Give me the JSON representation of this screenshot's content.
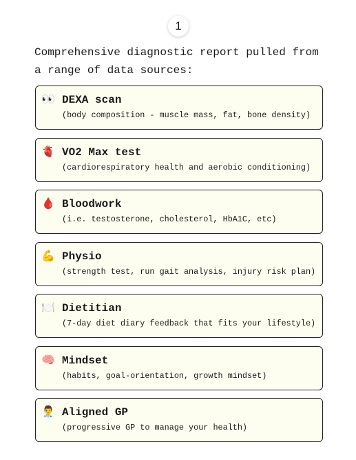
{
  "step": "1",
  "intro": "Comprehensive diagnostic report pulled from a range of data sources:",
  "items": [
    {
      "icon": "👀",
      "title": "DEXA scan",
      "description": "(body composition - muscle mass, fat, bone density)"
    },
    {
      "icon": "🫀",
      "title": "VO2 Max test",
      "description": "(cardiorespiratory health and aerobic conditioning)"
    },
    {
      "icon": "🩸",
      "title": "Bloodwork",
      "description": "(i.e. testosterone, cholesterol, HbA1C, etc)"
    },
    {
      "icon": "💪",
      "title": "Physio",
      "description": "(strength test, run gait analysis, injury risk plan)"
    },
    {
      "icon": "🍽️",
      "title": "Dietitian",
      "description": "(7-day diet diary feedback that fits your lifestyle)"
    },
    {
      "icon": "🧠",
      "title": "Mindset",
      "description": "(habits, goal-orientation, growth mindset)"
    },
    {
      "icon": "👨‍⚕️",
      "title": "Aligned GP",
      "description": "(progressive GP to manage your health)"
    }
  ]
}
